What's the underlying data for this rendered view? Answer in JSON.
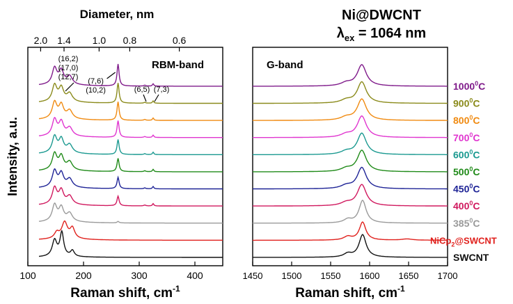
{
  "chart_data": [
    {
      "type": "line",
      "panel": "RBM-band",
      "band_label": "RBM-band",
      "xlabel_main": "Raman shift, cm",
      "xlabel_sup": "-1",
      "ylabel": "Intensity, a.u.",
      "top_axis_title": "Diameter, nm",
      "xlim": [
        100,
        450
      ],
      "xticks": [
        100,
        200,
        300,
        400
      ],
      "top_ticks": [
        {
          "label": "2.0",
          "shift": 123
        },
        {
          "label": "1.4",
          "shift": 165
        },
        {
          "label": "1.0",
          "shift": 228
        },
        {
          "label": "0.8",
          "shift": 283
        },
        {
          "label": "0.6",
          "shift": 372
        }
      ],
      "annotations": [
        {
          "lines": [
            "(16,2)",
            "(17,0)",
            "(12,7)"
          ],
          "x": 175
        },
        {
          "lines": [
            "(7,6)",
            "(10,2)"
          ],
          "x": 262
        },
        {
          "lines": [
            "(6,5)"
          ],
          "x": 310
        },
        {
          "lines": [
            "(7,3)"
          ],
          "x": 325
        }
      ]
    },
    {
      "type": "line",
      "panel": "G-band",
      "band_label": "G-band",
      "xlabel_main": "Raman shift, cm",
      "xlabel_sup": "-1",
      "xlim": [
        1450,
        1700
      ],
      "xticks": [
        1450,
        1500,
        1550,
        1600,
        1650,
        1700
      ]
    }
  ],
  "figure_title_line1": "Ni@DWCNT",
  "figure_title_line2_symbol": "λ",
  "figure_title_line2_sub": "ex",
  "figure_title_line2_rest": " = 1064 nm",
  "series": [
    {
      "name_main": "SWCNT",
      "name_sup": "",
      "name_tail": "",
      "color": "#111111"
    },
    {
      "name_main": "NiCp",
      "name_sup": "",
      "name_tail": "@SWCNT",
      "sub": "2",
      "color": "#e0201c"
    },
    {
      "name_main": "385",
      "name_sup": "0",
      "name_tail": "C",
      "color": "#9a9a9a"
    },
    {
      "name_main": "400",
      "name_sup": "0",
      "name_tail": "C",
      "color": "#d0185e"
    },
    {
      "name_main": "450",
      "name_sup": "0",
      "name_tail": "C",
      "color": "#1e2396"
    },
    {
      "name_main": "500",
      "name_sup": "0",
      "name_tail": "C",
      "color": "#1f8a18"
    },
    {
      "name_main": "600",
      "name_sup": "0",
      "name_tail": "C",
      "color": "#1a9990"
    },
    {
      "name_main": "700",
      "name_sup": "0",
      "name_tail": "C",
      "color": "#e035cf"
    },
    {
      "name_main": "800",
      "name_sup": "0",
      "name_tail": "C",
      "color": "#f08a10"
    },
    {
      "name_main": "900",
      "name_sup": "0",
      "name_tail": "C",
      "color": "#8a8a1a"
    },
    {
      "name_main": "1000",
      "name_sup": "0",
      "name_tail": "C",
      "color": "#7f1a8a"
    }
  ]
}
